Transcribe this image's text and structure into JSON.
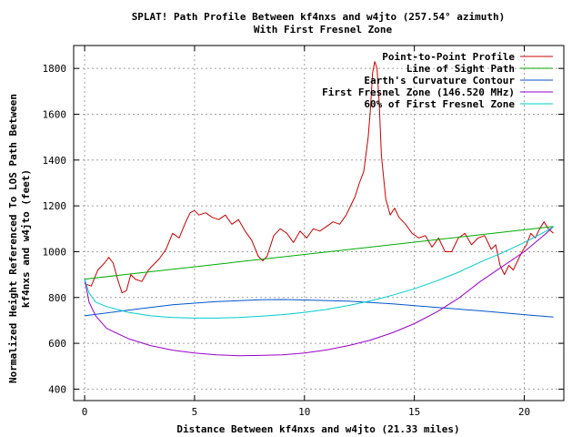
{
  "chart_data": {
    "type": "line",
    "title": "SPLAT! Path Profile Between kf4nxs and w4jto (257.54° azimuth)",
    "subtitle": "With First Fresnel Zone",
    "xlabel": "Distance Between kf4nxs and w4jto (21.33 miles)",
    "ylabel_lines": [
      "Normalized Height Referenced To LOS Path Between",
      "kf4nxs and w4jto (feet)"
    ],
    "xlim": [
      -0.5,
      21.8
    ],
    "ylim": [
      350,
      1900
    ],
    "x_ticks": [
      0,
      5,
      10,
      15,
      20
    ],
    "y_ticks": [
      400,
      600,
      800,
      1000,
      1200,
      1400,
      1600,
      1800
    ],
    "grid": true,
    "legend_position": "top-right",
    "series": [
      {
        "name": "Point-to-Point Profile",
        "color": "#cc0000",
        "x": [
          0,
          0.3,
          0.6,
          0.9,
          1.1,
          1.3,
          1.5,
          1.7,
          1.9,
          2.1,
          2.3,
          2.6,
          2.9,
          3.1,
          3.4,
          3.7,
          4.0,
          4.3,
          4.6,
          4.8,
          5.0,
          5.2,
          5.5,
          5.8,
          6.1,
          6.4,
          6.7,
          7.0,
          7.3,
          7.6,
          7.9,
          8.1,
          8.3,
          8.6,
          8.9,
          9.2,
          9.5,
          9.8,
          10.1,
          10.4,
          10.7,
          11.0,
          11.3,
          11.6,
          11.9,
          12.1,
          12.3,
          12.5,
          12.7,
          12.9,
          13.0,
          13.1,
          13.2,
          13.3,
          13.4,
          13.5,
          13.7,
          13.9,
          14.1,
          14.3,
          14.6,
          14.9,
          15.2,
          15.5,
          15.8,
          16.1,
          16.4,
          16.7,
          17.0,
          17.3,
          17.6,
          17.9,
          18.2,
          18.5,
          18.7,
          18.9,
          19.1,
          19.3,
          19.5,
          19.7,
          19.9,
          20.1,
          20.3,
          20.5,
          20.7,
          20.9,
          21.1,
          21.33
        ],
        "y": [
          860,
          850,
          920,
          950,
          975,
          950,
          880,
          820,
          830,
          900,
          880,
          870,
          920,
          940,
          970,
          1010,
          1080,
          1060,
          1130,
          1170,
          1180,
          1160,
          1170,
          1150,
          1140,
          1160,
          1120,
          1140,
          1090,
          1050,
          980,
          960,
          980,
          1070,
          1100,
          1080,
          1040,
          1090,
          1060,
          1100,
          1090,
          1110,
          1130,
          1120,
          1160,
          1200,
          1240,
          1300,
          1350,
          1500,
          1620,
          1780,
          1830,
          1800,
          1650,
          1420,
          1230,
          1160,
          1190,
          1150,
          1120,
          1080,
          1060,
          1070,
          1020,
          1060,
          1000,
          1000,
          1060,
          1080,
          1030,
          1060,
          1070,
          1010,
          1030,
          940,
          900,
          940,
          920,
          960,
          1000,
          1030,
          1080,
          1060,
          1100,
          1130,
          1100,
          1080
        ]
      },
      {
        "name": "Line of Sight Path",
        "color": "#00aa00",
        "x": [
          0,
          21.33
        ],
        "y": [
          880,
          1110
        ]
      },
      {
        "name": "Earth's Curvature Contour",
        "color": "#0055cc",
        "x": [
          0,
          2,
          4,
          6,
          8,
          9,
          10,
          12,
          14,
          16,
          18,
          20,
          21.33
        ],
        "y": [
          720,
          745,
          768,
          782,
          790,
          791,
          789,
          784,
          772,
          757,
          742,
          725,
          715
        ]
      },
      {
        "name": "First Fresnel Zone (146.520 MHz)",
        "color": "#9900cc",
        "x": [
          0,
          0.2,
          0.5,
          1,
          2,
          3,
          4,
          5,
          6,
          7,
          8,
          9,
          10,
          11,
          12,
          13,
          14,
          15,
          16,
          17,
          18,
          19,
          20,
          20.5,
          21,
          21.33
        ],
        "y": [
          880,
          780,
          720,
          665,
          620,
          590,
          570,
          558,
          550,
          546,
          547,
          550,
          558,
          571,
          590,
          614,
          646,
          686,
          736,
          796,
          870,
          935,
          1000,
          1040,
          1080,
          1110
        ]
      },
      {
        "name": "60% of First Fresnel Zone",
        "color": "#00cccc",
        "x": [
          0,
          0.2,
          0.5,
          1,
          2,
          3,
          4,
          5,
          6,
          7,
          8,
          9,
          10,
          11,
          12,
          13,
          14,
          15,
          16,
          17,
          18,
          19,
          20,
          20.5,
          21,
          21.33
        ],
        "y": [
          880,
          820,
          780,
          760,
          735,
          720,
          713,
          710,
          710,
          713,
          718,
          725,
          735,
          748,
          765,
          785,
          810,
          838,
          872,
          910,
          955,
          995,
          1040,
          1065,
          1090,
          1110
        ]
      }
    ]
  }
}
